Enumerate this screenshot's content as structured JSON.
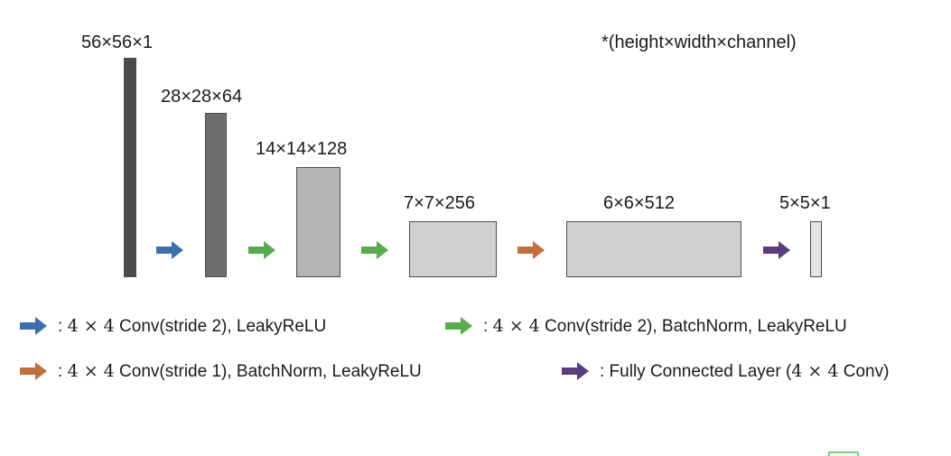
{
  "header": {
    "note": "*(height×width×channel)"
  },
  "layers": [
    {
      "label": "56×56×1",
      "color": "#4a4a4a"
    },
    {
      "label": "28×28×64",
      "color": "#6e6e6e"
    },
    {
      "label": "14×14×128",
      "color": "#b3b3b3"
    },
    {
      "label": "7×7×256",
      "color": "#d0d0d0"
    },
    {
      "label": "6×6×512",
      "color": "#d0d0d0"
    },
    {
      "label": "5×5×1",
      "color": "#e3e3e3"
    }
  ],
  "arrow_colors": {
    "blue": "#3f6fab",
    "green": "#5aaa4f",
    "orange": "#c0703f",
    "purple": "#5a3d7f"
  },
  "legend": [
    {
      "color_key": "blue",
      "prefix": ": ",
      "math": "4 × 4",
      "text": " Conv(stride 2), LeakyReLU",
      "suffix": ""
    },
    {
      "color_key": "green",
      "prefix": ": ",
      "math": "4 × 4",
      "text": " Conv(stride 2), BatchNorm, LeakyReLU",
      "suffix": ""
    },
    {
      "color_key": "orange",
      "prefix": ": ",
      "math": "4 × 4",
      "text": " Conv(stride 1), BatchNorm, LeakyReLU",
      "suffix": ""
    },
    {
      "color_key": "purple",
      "prefix": ": Fully Connected Layer (",
      "math": "4 × 4",
      "text": " Conv)",
      "suffix": ""
    }
  ]
}
